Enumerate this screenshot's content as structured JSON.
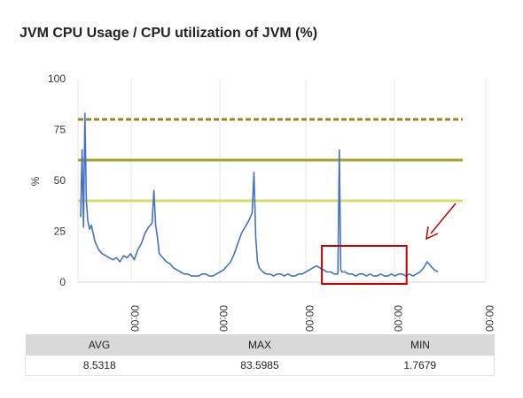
{
  "title": "JVM CPU Usage / CPU utilization of JVM (%)",
  "chart_data": {
    "type": "line",
    "ylabel": "%",
    "ylim": [
      0,
      100
    ],
    "yticks": [
      0,
      25,
      50,
      75,
      100
    ],
    "xtick_labels": [
      "00:00",
      "00:00",
      "00:00",
      "00:00",
      "00:00"
    ],
    "grid": true,
    "series": [
      {
        "color": "#4472c4",
        "x": [
          0,
          0.4,
          0.8,
          1.2,
          1.6,
          2,
          2.5,
          3,
          3.5,
          4,
          5,
          6,
          7,
          8,
          9,
          10,
          11,
          12,
          13,
          14,
          15,
          16,
          17,
          18,
          19,
          20,
          20.5,
          21,
          21.5,
          22,
          23,
          24,
          25,
          26,
          27,
          28,
          29,
          30,
          31,
          32,
          33,
          34,
          35,
          36,
          37,
          38,
          39,
          40,
          41,
          42,
          43,
          44,
          45,
          46,
          47,
          48,
          48.5,
          49,
          49.5,
          50,
          51,
          52,
          53,
          54,
          55,
          56,
          57,
          58,
          59,
          60,
          61,
          62,
          63,
          64,
          65,
          66,
          67,
          68,
          69,
          70,
          71,
          72,
          72.4,
          72.8,
          73.2,
          74,
          75,
          76,
          77,
          78,
          79,
          80,
          81,
          82,
          83,
          84,
          85,
          86,
          87,
          88,
          89,
          90,
          91,
          92,
          93,
          94,
          95,
          96,
          97,
          98,
          99,
          100
        ],
        "values": [
          32,
          65,
          27,
          83,
          40,
          30,
          26,
          28,
          24,
          20,
          16,
          14,
          13,
          12,
          11,
          12,
          10,
          13,
          12,
          14,
          11,
          16,
          19,
          24,
          27,
          29,
          45,
          28,
          22,
          14,
          12,
          10,
          9,
          7,
          6,
          5,
          4,
          4,
          3,
          3,
          3,
          4,
          4,
          3,
          3,
          4,
          5,
          6,
          8,
          10,
          14,
          19,
          24,
          27,
          30,
          34,
          54,
          22,
          10,
          7,
          5,
          4,
          4,
          3,
          4,
          4,
          3,
          4,
          3,
          3,
          4,
          4,
          5,
          6,
          7,
          8,
          7,
          6,
          5,
          5,
          4,
          4,
          65,
          6,
          5,
          5,
          4,
          4,
          3,
          4,
          4,
          3,
          4,
          3,
          3,
          4,
          3,
          3,
          4,
          3,
          4,
          4,
          3,
          4,
          3,
          4,
          5,
          7,
          10,
          8,
          6,
          5
        ]
      }
    ],
    "thresholds": [
      {
        "value": 80,
        "color": "#8b8b22",
        "style": "dashed"
      },
      {
        "value": 60,
        "color": "#9ea12a",
        "style": "solid"
      },
      {
        "value": 40,
        "color": "#d4dc6a",
        "style": "solid"
      }
    ],
    "annotation": {
      "type": "highlight-box-with-arrow",
      "color": "#c00000",
      "x_range": [
        70,
        90
      ]
    }
  },
  "stats": {
    "headers": [
      "AVG",
      "MAX",
      "MIN"
    ],
    "values": [
      "8.5318",
      "83.5985",
      "1.7679"
    ]
  }
}
